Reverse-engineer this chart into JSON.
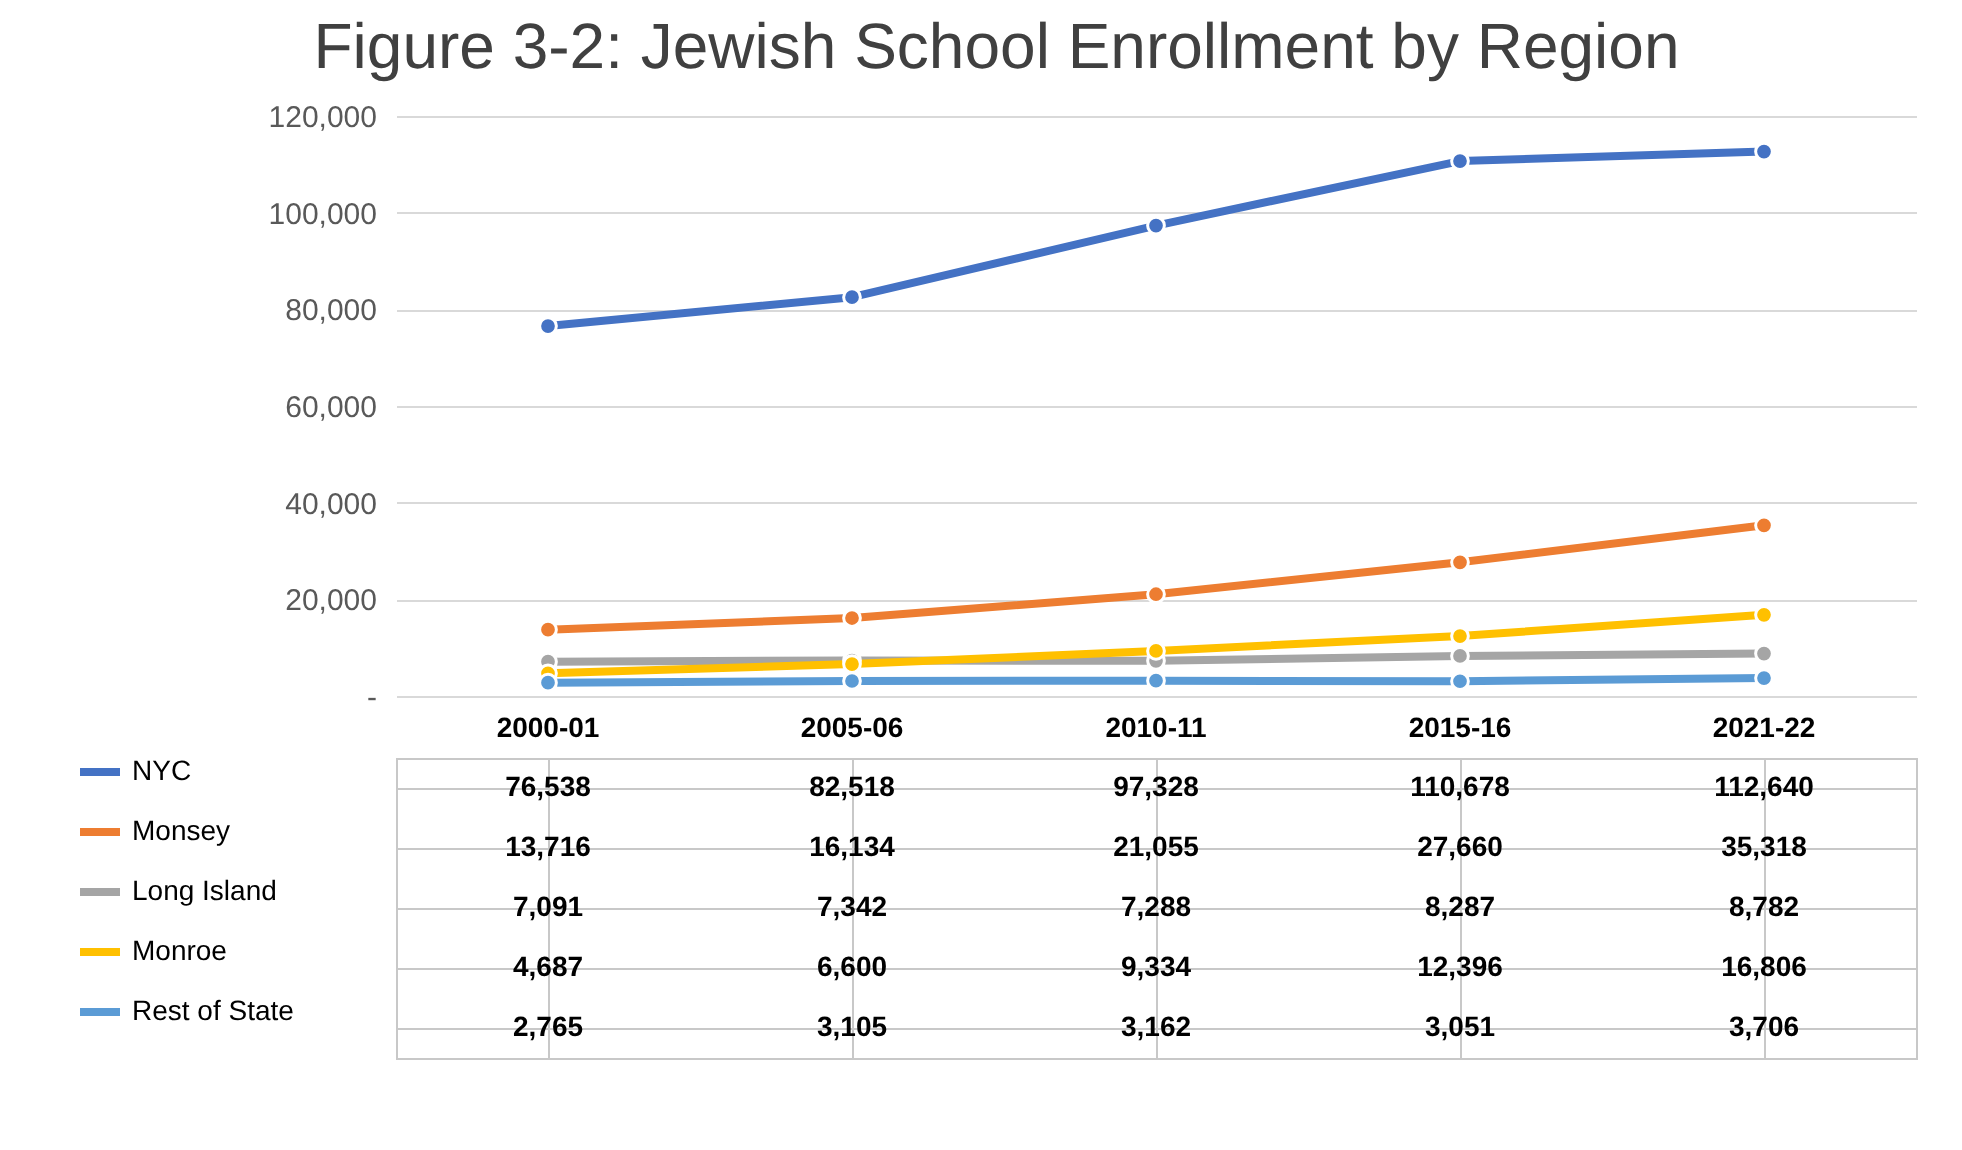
{
  "chart_data": {
    "type": "line",
    "title": "Figure 3-2: Jewish School Enrollment by Region",
    "categories": [
      "2000-01",
      "2005-06",
      "2010-11",
      "2015-16",
      "2021-22"
    ],
    "series": [
      {
        "name": "NYC",
        "color": "#4472c4",
        "values": [
          76538,
          82518,
          97328,
          110678,
          112640
        ],
        "value_labels": [
          "76,538",
          "82,518",
          "97,328",
          "110,678",
          "112,640"
        ]
      },
      {
        "name": "Monsey",
        "color": "#ed7d31",
        "values": [
          13716,
          16134,
          21055,
          27660,
          35318
        ],
        "value_labels": [
          "13,716",
          "16,134",
          "21,055",
          "27,660",
          "35,318"
        ]
      },
      {
        "name": "Long Island",
        "color": "#a5a5a5",
        "values": [
          7091,
          7342,
          7288,
          8287,
          8782
        ],
        "value_labels": [
          "7,091",
          "7,342",
          "7,288",
          "8,287",
          "8,782"
        ]
      },
      {
        "name": "Monroe",
        "color": "#ffc000",
        "values": [
          4687,
          6600,
          9334,
          12396,
          16806
        ],
        "value_labels": [
          "4,687",
          "6,600",
          "9,334",
          "12,396",
          "16,806"
        ]
      },
      {
        "name": "Rest of State",
        "color": "#5b9bd5",
        "values": [
          2765,
          3105,
          3162,
          3051,
          3706
        ],
        "value_labels": [
          "2,765",
          "3,105",
          "3,162",
          "3,051",
          "3,706"
        ]
      }
    ],
    "ylim": [
      0,
      120000
    ],
    "yticks": [
      {
        "value": 0,
        "label": "-"
      },
      {
        "value": 20000,
        "label": "20,000"
      },
      {
        "value": 40000,
        "label": "40,000"
      },
      {
        "value": 60000,
        "label": "60,000"
      },
      {
        "value": 80000,
        "label": "80,000"
      },
      {
        "value": 100000,
        "label": "100,000"
      },
      {
        "value": 120000,
        "label": "120,000"
      }
    ],
    "grid": "y",
    "legend": "bottom left",
    "marker": "circle",
    "line_style": "solid"
  }
}
